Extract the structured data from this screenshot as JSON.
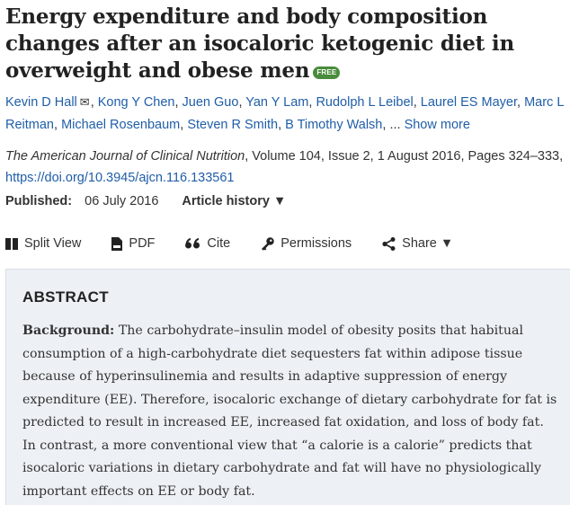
{
  "article": {
    "title": "Energy expenditure and body composition changes after an isocaloric ketogenic diet in overweight and obese men",
    "free_badge": "FREE"
  },
  "authors": {
    "list": [
      "Kevin D Hall",
      "Kong Y Chen",
      "Juen Guo",
      "Yan Y Lam",
      "Rudolph L Leibel",
      "Laurel ES Mayer",
      "Marc L Reitman",
      "Michael Rosenbaum",
      "Steven R Smith",
      "B Timothy Walsh"
    ],
    "ellipsis": "...",
    "show_more": "Show more",
    "mail_icon": "envelope-icon"
  },
  "citation": {
    "journal": "The American Journal of Clinical Nutrition",
    "details": ", Volume 104, Issue 2, 1 August 2016, Pages 324–333,",
    "doi": "https://doi.org/10.3945/ajcn.116.133561"
  },
  "published": {
    "label": "Published:",
    "date": "06 July 2016",
    "history": "Article history ▼"
  },
  "toolbar": {
    "split_view": "Split View",
    "pdf": "PDF",
    "cite": "Cite",
    "permissions": "Permissions",
    "share": "Share ▼"
  },
  "abstract": {
    "heading": "ABSTRACT",
    "background_label": "Background:",
    "background_text": " The carbohydrate–insulin model of obesity posits that habitual consumption of a high-carbohydrate diet sequesters fat within adipose tissue because of hyperinsulinemia and results in adaptive suppression of energy expenditure (EE). Therefore, isocaloric exchange of dietary carbohydrate for fat is predicted to result in increased EE, increased fat oxidation, and loss of body fat. In contrast, a more conventional view that “a calorie is a calorie” predicts that isocaloric variations in dietary carbohydrate and fat will have no physiologically important effects on EE or body fat."
  },
  "colors": {
    "link": "#1f5ea8",
    "badge": "#4a8c3c",
    "abstract_bg": "#edf1f5"
  }
}
